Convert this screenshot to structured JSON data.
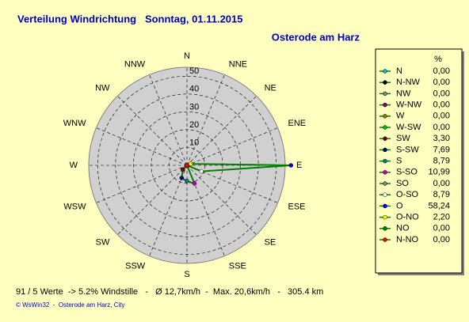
{
  "chart_data": {
    "type": "radar",
    "title": "Verteilung Windrichtung   Sonntag, 01.11.2015",
    "subtitle": "Osterode am Harz",
    "axis_labels": [
      "N",
      "NNE",
      "NE",
      "ENE",
      "E",
      "ESE",
      "SE",
      "SSE",
      "S",
      "SSW",
      "SW",
      "WSW",
      "W",
      "WNW",
      "NW",
      "NNW"
    ],
    "legend_title": "%",
    "categories": [
      "N",
      "N-NW",
      "NW",
      "W-NW",
      "W",
      "W-SW",
      "SW",
      "S-SW",
      "S",
      "S-SO",
      "SO",
      "O-SO",
      "O",
      "O-NO",
      "NO",
      "N-NO"
    ],
    "values": [
      0,
      0,
      0,
      0,
      0,
      0,
      3.3,
      7.69,
      8.79,
      10.99,
      0,
      8.79,
      58.24,
      2.2,
      0,
      0
    ],
    "value_labels": [
      "0,00",
      "0,00",
      "0,00",
      "0,00",
      "0,00",
      "0,00",
      "3,30",
      "7,69",
      "8,79",
      "10,99",
      "0,00",
      "8,79",
      "58,24",
      "2,20",
      "0,00",
      "0,00"
    ],
    "colors": [
      "#00c0c0",
      "#000000",
      "#808080",
      "#800080",
      "#808000",
      "#00c000",
      "#800000",
      "#000080",
      "#008080",
      "#c000c0",
      "#808080",
      "#ffffff",
      "#0000ff",
      "#ffff00",
      "#008000",
      "#ff0000"
    ],
    "line_color": "#008000",
    "rlim": [
      0,
      55
    ],
    "rticks": [
      10,
      20,
      30,
      40,
      50
    ],
    "footer": "91 / 5 Werte  -> 5.2% Windstille   -   Ø 12,7km/h  -  Max. 20,6km/h   -   305.4 km",
    "credit": "© WsWin32  -  Osterode am Harz, City"
  }
}
